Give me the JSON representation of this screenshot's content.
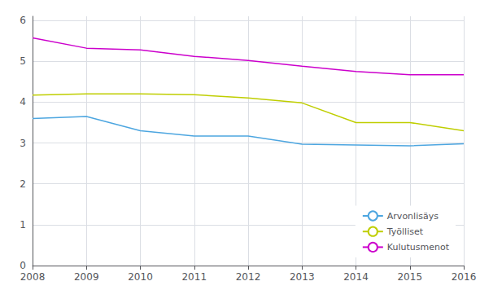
{
  "chart_data": {
    "type": "line",
    "x": [
      2008,
      2009,
      2010,
      2011,
      2012,
      2013,
      2014,
      2015,
      2016
    ],
    "series": [
      {
        "name": "Arvonlisäys",
        "color": "#4da6e0",
        "values": [
          3.6,
          3.65,
          3.3,
          3.17,
          3.17,
          2.97,
          2.95,
          2.93,
          2.98
        ]
      },
      {
        "name": "Työlliset",
        "color": "#bfce00",
        "values": [
          4.17,
          4.2,
          4.2,
          4.18,
          4.1,
          3.98,
          3.5,
          3.5,
          3.3
        ]
      },
      {
        "name": "Kulutusmenot",
        "color": "#cc00cc",
        "values": [
          5.57,
          5.32,
          5.28,
          5.12,
          5.02,
          4.88,
          4.75,
          4.67,
          4.67
        ]
      }
    ],
    "xlim": [
      2008,
      2016
    ],
    "xticks": [
      2008,
      2009,
      2010,
      2011,
      2012,
      2013,
      2014,
      2015,
      2016
    ],
    "ylim": [
      0,
      6.1
    ],
    "yticks": [
      0,
      1,
      2,
      3,
      4,
      5,
      6
    ],
    "grid": true,
    "legend": "lower right"
  }
}
